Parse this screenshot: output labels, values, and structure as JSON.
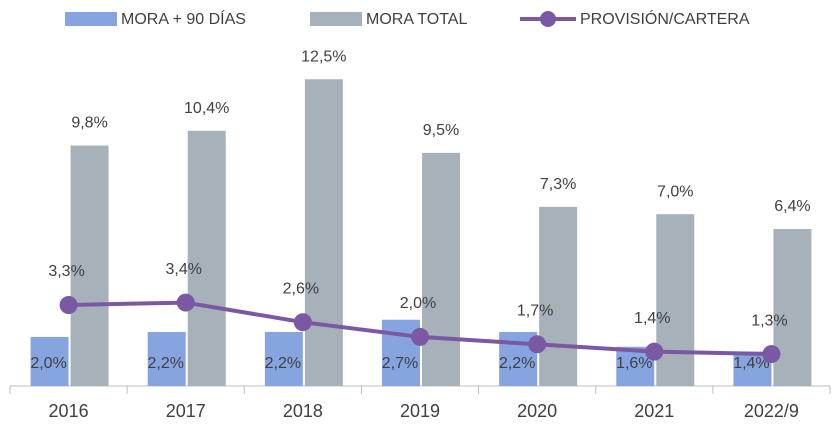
{
  "chart_data": {
    "type": "bar",
    "categories": [
      "2016",
      "2017",
      "2018",
      "2019",
      "2020",
      "2021",
      "2022/9"
    ],
    "series": [
      {
        "name": "MORA + 90 DÍAS",
        "type": "bar",
        "color": "#86a5e0",
        "values": [
          2.0,
          2.2,
          2.2,
          2.7,
          2.2,
          1.6,
          1.4
        ],
        "value_labels": [
          "2,0%",
          "2,2%",
          "2,2%",
          "2,7%",
          "2,2%",
          "1,6%",
          "1,4%"
        ]
      },
      {
        "name": "MORA TOTAL",
        "type": "bar",
        "color": "#a6b1b9",
        "values": [
          9.8,
          10.4,
          12.5,
          9.5,
          7.3,
          7.0,
          6.4
        ],
        "value_labels": [
          "9,8%",
          "10,4%",
          "12,5%",
          "9,5%",
          "7,3%",
          "7,0%",
          "6,4%"
        ]
      },
      {
        "name": "PROVISIÓN/CARTERA",
        "type": "line",
        "color": "#7b58a3",
        "values": [
          3.3,
          3.4,
          2.6,
          2.0,
          1.7,
          1.4,
          1.3
        ],
        "value_labels": [
          "3,3%",
          "3,4%",
          "2,6%",
          "2,0%",
          "1,7%",
          "1,4%",
          "1,3%"
        ]
      }
    ],
    "ylim": [
      0,
      13
    ]
  }
}
